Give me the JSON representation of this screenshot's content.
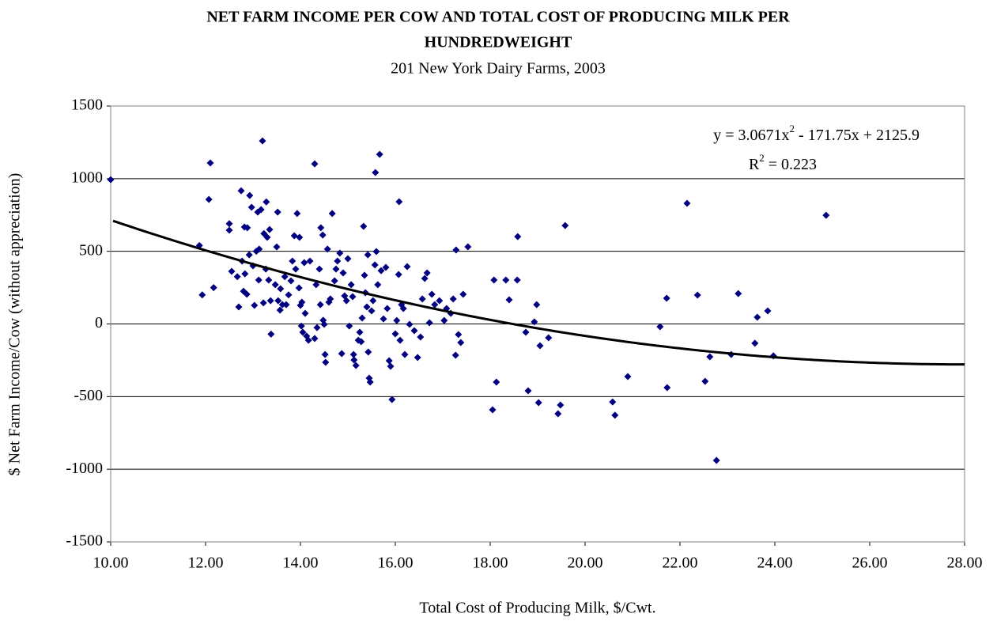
{
  "chart_data": {
    "type": "scatter",
    "title": [
      "NET FARM INCOME PER COW AND TOTAL COST OF PRODUCING MILK PER",
      "HUNDREDWEIGHT"
    ],
    "subtitle": "201 New York Dairy Farms, 2003",
    "x_label": "Total Cost of Producing Milk, $/Cwt.",
    "y_label": "$ Net Farm Income/Cow (without appreciation)",
    "xlim": [
      10,
      28
    ],
    "xticks": [
      {
        "value": 10,
        "label": "10.00"
      },
      {
        "value": 12,
        "label": "12.00"
      },
      {
        "value": 14,
        "label": "14.00"
      },
      {
        "value": 16,
        "label": "16.00"
      },
      {
        "value": 18,
        "label": "18.00"
      },
      {
        "value": 20,
        "label": "20.00"
      },
      {
        "value": 22,
        "label": "22.00"
      },
      {
        "value": 24,
        "label": "24.00"
      },
      {
        "value": 26,
        "label": "26.00"
      },
      {
        "value": 28,
        "label": "28.00"
      }
    ],
    "ylim": [
      -1500,
      1500
    ],
    "yticks": [
      1500,
      1000,
      500,
      0,
      -500,
      -1000,
      -1500
    ],
    "grid": true,
    "color": "#000080",
    "x": [
      10.0,
      11.87,
      11.93,
      12.1,
      12.07,
      12.17,
      12.5,
      12.5,
      12.55,
      12.67,
      12.7,
      12.75,
      12.77,
      12.8,
      12.82,
      12.83,
      12.87,
      12.88,
      12.92,
      12.93,
      12.97,
      13.0,
      13.03,
      13.07,
      13.1,
      13.12,
      13.13,
      13.17,
      13.2,
      13.22,
      13.23,
      13.27,
      13.28,
      13.3,
      13.33,
      13.35,
      13.37,
      13.38,
      13.47,
      13.5,
      13.52,
      13.53,
      13.57,
      13.58,
      13.62,
      13.67,
      13.7,
      13.75,
      13.8,
      13.83,
      13.87,
      13.9,
      13.93,
      13.97,
      13.98,
      14.0,
      14.02,
      14.03,
      14.05,
      14.08,
      14.1,
      14.13,
      14.17,
      14.2,
      14.3,
      14.3,
      14.33,
      14.35,
      14.4,
      14.42,
      14.43,
      14.47,
      14.48,
      14.5,
      14.52,
      14.53,
      14.57,
      14.6,
      14.63,
      14.67,
      14.72,
      14.75,
      14.78,
      14.83,
      14.87,
      14.9,
      14.93,
      14.97,
      15.0,
      15.03,
      15.07,
      15.1,
      15.12,
      15.13,
      15.17,
      15.22,
      15.25,
      15.28,
      15.3,
      15.33,
      15.35,
      15.37,
      15.4,
      15.42,
      15.43,
      15.45,
      15.47,
      15.5,
      15.53,
      15.57,
      15.58,
      15.6,
      15.63,
      15.67,
      15.7,
      15.75,
      15.8,
      15.83,
      15.87,
      15.9,
      15.93,
      16.0,
      16.03,
      16.07,
      16.08,
      16.1,
      16.13,
      16.17,
      16.2,
      16.25,
      16.3,
      16.4,
      16.47,
      16.53,
      16.57,
      16.62,
      16.67,
      16.72,
      16.77,
      16.83,
      16.93,
      17.03,
      17.08,
      17.17,
      17.22,
      17.27,
      17.28,
      17.33,
      17.38,
      17.43,
      17.53,
      18.08,
      18.13,
      18.05,
      18.33,
      18.4,
      18.57,
      18.58,
      18.75,
      18.8,
      18.93,
      18.98,
      19.02,
      19.05,
      19.23,
      19.43,
      19.48,
      19.58,
      20.58,
      20.63,
      20.9,
      21.58,
      21.72,
      21.73,
      22.15,
      22.37,
      22.53,
      22.63,
      22.77,
      23.08,
      23.23,
      23.58,
      23.63,
      23.85,
      23.97,
      25.08
    ],
    "values": [
      993,
      540,
      200,
      1108,
      857,
      250,
      690,
      645,
      362,
      325,
      117,
      917,
      433,
      225,
      667,
      345,
      204,
      662,
      476,
      884,
      803,
      400,
      128,
      500,
      770,
      302,
      515,
      787,
      1260,
      145,
      622,
      378,
      840,
      596,
      302,
      650,
      160,
      -70,
      270,
      530,
      770,
      160,
      95,
      242,
      133,
      325,
      133,
      200,
      297,
      433,
      607,
      378,
      760,
      248,
      596,
      128,
      -14,
      150,
      -57,
      422,
      73,
      -84,
      -112,
      433,
      -100,
      1102,
      270,
      -25,
      378,
      133,
      662,
      612,
      25,
      -3,
      -210,
      -264,
      515,
      150,
      172,
      760,
      297,
      378,
      433,
      487,
      -204,
      351,
      193,
      160,
      449,
      -14,
      270,
      188,
      -210,
      -248,
      -286,
      -112,
      -57,
      -122,
      41,
      672,
      335,
      215,
      117,
      476,
      -193,
      -373,
      -400,
      90,
      160,
      406,
      1042,
      498,
      270,
      1167,
      367,
      35,
      389,
      106,
      -253,
      -291,
      -520,
      -68,
      24,
      340,
      841,
      -112,
      133,
      106,
      -210,
      395,
      -3,
      -46,
      -231,
      -90,
      172,
      313,
      351,
      8,
      204,
      133,
      160,
      24,
      106,
      73,
      172,
      -215,
      509,
      -73,
      -128,
      204,
      531,
      302,
      -400,
      -591,
      302,
      166,
      302,
      601,
      -57,
      -460,
      14,
      133,
      -542,
      -150,
      -95,
      -618,
      -558,
      677,
      -537,
      -628,
      -362,
      -19,
      177,
      -438,
      830,
      199,
      -395,
      -226,
      -939,
      -210,
      209,
      -133,
      46,
      90,
      -220,
      748
    ],
    "trendline": {
      "coefficients": [
        3.0671,
        -171.75,
        2125.9
      ],
      "x_range": [
        10.05,
        28
      ],
      "color": "#000000",
      "equation": [
        "y = 3.0671x",
        "2",
        " - 171.75x + 2125.9"
      ],
      "r_squared": [
        "R",
        "2",
        " = 0.223"
      ]
    }
  }
}
